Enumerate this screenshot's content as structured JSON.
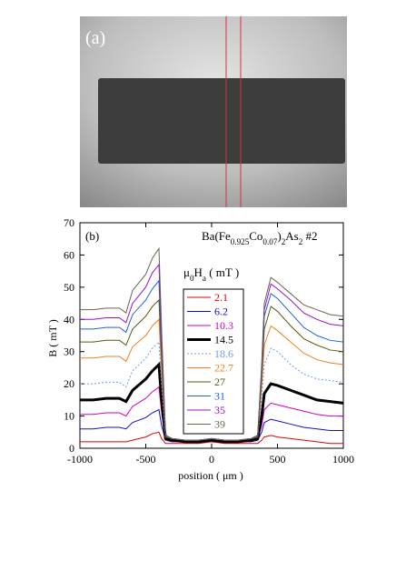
{
  "image": {
    "label": "(a)"
  },
  "chart_data": {
    "type": "line",
    "panel_label": "(b)",
    "title": [
      "Ba(Fe",
      "0.925",
      "Co",
      "0.07",
      ")",
      "2",
      "As",
      "2",
      " #2"
    ],
    "legend_title": [
      "μ",
      "0",
      "H",
      "a",
      " ( mT )"
    ],
    "xlabel": "position ( μm )",
    "ylabel": "B ( mT )",
    "xlim": [
      -1000,
      1000
    ],
    "xticks": [
      -1000,
      -500,
      0,
      500,
      1000
    ],
    "ylim": [
      0,
      70
    ],
    "yticks": [
      0,
      10,
      20,
      30,
      40,
      50,
      60,
      70
    ],
    "grid": false,
    "x": [
      -1000,
      -900,
      -800,
      -700,
      -650,
      -600,
      -500,
      -450,
      -400,
      -380,
      -350,
      -300,
      -200,
      -100,
      0,
      100,
      200,
      300,
      350,
      380,
      400,
      450,
      500,
      600,
      700,
      800,
      900,
      1000
    ],
    "series": [
      {
        "name": "2.1",
        "color": "#e00000",
        "width": 1,
        "dash": "solid",
        "values": [
          2,
          2,
          2,
          2,
          2,
          2.5,
          3.5,
          4.5,
          5,
          3,
          1.5,
          1.5,
          1.5,
          1.5,
          2,
          1.5,
          1.5,
          1.5,
          1.5,
          2.5,
          3.5,
          4,
          3.5,
          3,
          2.5,
          2,
          1.5,
          1.5
        ]
      },
      {
        "name": "6.2",
        "color": "#1010cc",
        "width": 1,
        "dash": "solid",
        "values": [
          6,
          6,
          6.5,
          6.5,
          6,
          8,
          9.5,
          11,
          12,
          7,
          2.5,
          2,
          2,
          2,
          2.5,
          2,
          2,
          2,
          2.5,
          5,
          8,
          9,
          8.5,
          7.5,
          6.5,
          6,
          5.5,
          5.5
        ]
      },
      {
        "name": "10.3",
        "color": "#d000c0",
        "width": 1,
        "dash": "solid",
        "values": [
          10.5,
          10.5,
          11,
          11,
          10,
          13,
          15.5,
          17.5,
          19,
          11,
          3,
          2.5,
          2,
          2,
          2.5,
          2,
          2,
          2.5,
          3,
          7,
          12,
          14,
          13.5,
          12.5,
          11.5,
          10.5,
          10,
          10
        ]
      },
      {
        "name": "14.5",
        "color": "#000000",
        "width": 3,
        "dash": "solid",
        "values": [
          15,
          15,
          15.5,
          15.5,
          14.5,
          18,
          21.5,
          24,
          26,
          15,
          3,
          2.5,
          2,
          2,
          2.5,
          2,
          2,
          2.5,
          3,
          10,
          17,
          20,
          19.5,
          18,
          16.5,
          15,
          14.5,
          14
        ]
      },
      {
        "name": "18.6",
        "color": "#6f9cf0",
        "width": 1,
        "dash": "dotted",
        "values": [
          20,
          20,
          20.5,
          20.5,
          19,
          24,
          28,
          31,
          33,
          20,
          3.5,
          3,
          2.5,
          2.5,
          3,
          2.5,
          2.5,
          3,
          3.5,
          16,
          26,
          31,
          30,
          26,
          23,
          21.5,
          21,
          20.5
        ]
      },
      {
        "name": "22.7",
        "color": "#f08020",
        "width": 1,
        "dash": "solid",
        "values": [
          28,
          28,
          28.5,
          28.5,
          27,
          31.5,
          35,
          38,
          40,
          24,
          3.5,
          3,
          2.5,
          2.5,
          3,
          2.5,
          2.5,
          3,
          3.5,
          19,
          32,
          38,
          36.5,
          33,
          29.5,
          27.5,
          26.5,
          26
        ]
      },
      {
        "name": "27",
        "color": "#5a5a10",
        "width": 1,
        "dash": "solid",
        "values": [
          33,
          33,
          33.5,
          33.5,
          32,
          37,
          41,
          44,
          46,
          28,
          3.5,
          3,
          2.5,
          2.5,
          3,
          2.5,
          2.5,
          3,
          3.5,
          22,
          37,
          44,
          42.5,
          38,
          34,
          32,
          30.5,
          30
        ]
      },
      {
        "name": "31",
        "color": "#2060e0",
        "width": 1,
        "dash": "solid",
        "values": [
          37,
          37,
          37.5,
          37.5,
          36,
          41.5,
          46,
          49.5,
          52,
          31,
          4,
          3,
          2.5,
          2.5,
          3,
          2.5,
          2.5,
          3,
          4,
          24,
          41,
          48,
          46.5,
          42,
          37.5,
          35,
          33.5,
          33
        ]
      },
      {
        "name": "35",
        "color": "#9a10c8",
        "width": 1,
        "dash": "solid",
        "values": [
          40,
          40,
          40.5,
          40.5,
          39,
          45,
          50,
          54.5,
          57,
          34,
          4,
          3,
          2.5,
          2.5,
          3,
          2.5,
          2.5,
          3,
          4,
          25,
          43,
          51,
          49.5,
          46,
          42,
          40,
          38.5,
          38
        ]
      },
      {
        "name": "39",
        "color": "#6a6450",
        "width": 1,
        "dash": "solid",
        "values": [
          43,
          43,
          43.5,
          43.5,
          42,
          49,
          54,
          59,
          62,
          37,
          4,
          3,
          2.5,
          2.5,
          3,
          2.5,
          2.5,
          3,
          4,
          26,
          45,
          53,
          51.5,
          48,
          44.5,
          43,
          41.5,
          41
        ]
      }
    ]
  }
}
